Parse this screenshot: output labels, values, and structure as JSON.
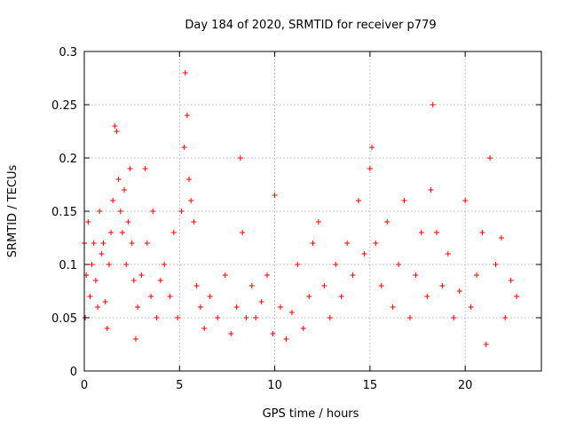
{
  "chart_data": {
    "type": "scatter",
    "title": "Day 184 of 2020, SRMTID for receiver p779",
    "xlabel": "GPS time / hours",
    "ylabel": "SRMTID / TECUs",
    "xlim": [
      0,
      24
    ],
    "ylim": [
      0,
      0.3
    ],
    "xticks": [
      0,
      5,
      10,
      15,
      20
    ],
    "xtick_labels": [
      "0",
      "5",
      "10",
      "15",
      "20"
    ],
    "yticks": [
      0,
      0.05,
      0.1,
      0.15,
      0.2,
      0.25,
      0.3
    ],
    "ytick_labels": [
      "0",
      "0.05",
      "0.1",
      "0.15",
      "0.2",
      "0.25",
      "0.3"
    ],
    "grid": true,
    "marker": "+",
    "color": "#ff0000",
    "series": [
      {
        "name": "SRMTID",
        "note": "approximate envelope samples read from the plot (hour, TECU)",
        "points": [
          [
            0.0,
            0.12
          ],
          [
            0.05,
            0.05
          ],
          [
            0.1,
            0.09
          ],
          [
            0.2,
            0.14
          ],
          [
            0.3,
            0.07
          ],
          [
            0.4,
            0.1
          ],
          [
            0.5,
            0.12
          ],
          [
            0.6,
            0.085
          ],
          [
            0.7,
            0.06
          ],
          [
            0.8,
            0.15
          ],
          [
            0.9,
            0.11
          ],
          [
            1.0,
            0.12
          ],
          [
            1.1,
            0.065
          ],
          [
            1.2,
            0.04
          ],
          [
            1.3,
            0.1
          ],
          [
            1.4,
            0.13
          ],
          [
            1.5,
            0.16
          ],
          [
            1.6,
            0.23
          ],
          [
            1.7,
            0.225
          ],
          [
            1.8,
            0.18
          ],
          [
            1.9,
            0.15
          ],
          [
            2.0,
            0.13
          ],
          [
            2.1,
            0.17
          ],
          [
            2.2,
            0.1
          ],
          [
            2.3,
            0.14
          ],
          [
            2.4,
            0.19
          ],
          [
            2.5,
            0.12
          ],
          [
            2.6,
            0.085
          ],
          [
            2.7,
            0.03
          ],
          [
            2.8,
            0.06
          ],
          [
            3.0,
            0.09
          ],
          [
            3.2,
            0.19
          ],
          [
            3.3,
            0.12
          ],
          [
            3.5,
            0.07
          ],
          [
            3.6,
            0.15
          ],
          [
            3.8,
            0.05
          ],
          [
            4.0,
            0.085
          ],
          [
            4.2,
            0.1
          ],
          [
            4.5,
            0.07
          ],
          [
            4.7,
            0.13
          ],
          [
            4.9,
            0.05
          ],
          [
            5.1,
            0.15
          ],
          [
            5.25,
            0.21
          ],
          [
            5.3,
            0.28
          ],
          [
            5.4,
            0.24
          ],
          [
            5.5,
            0.18
          ],
          [
            5.6,
            0.16
          ],
          [
            5.75,
            0.14
          ],
          [
            5.9,
            0.08
          ],
          [
            6.1,
            0.06
          ],
          [
            6.3,
            0.04
          ],
          [
            6.6,
            0.07
          ],
          [
            7.0,
            0.05
          ],
          [
            7.4,
            0.09
          ],
          [
            7.7,
            0.035
          ],
          [
            8.0,
            0.06
          ],
          [
            8.2,
            0.2
          ],
          [
            8.3,
            0.13
          ],
          [
            8.5,
            0.05
          ],
          [
            8.8,
            0.08
          ],
          [
            9.0,
            0.05
          ],
          [
            9.3,
            0.065
          ],
          [
            9.6,
            0.09
          ],
          [
            9.9,
            0.035
          ],
          [
            10.0,
            0.165
          ],
          [
            10.3,
            0.06
          ],
          [
            10.6,
            0.03
          ],
          [
            10.9,
            0.055
          ],
          [
            11.2,
            0.1
          ],
          [
            11.5,
            0.04
          ],
          [
            11.8,
            0.07
          ],
          [
            12.0,
            0.12
          ],
          [
            12.3,
            0.14
          ],
          [
            12.6,
            0.08
          ],
          [
            12.9,
            0.05
          ],
          [
            13.2,
            0.1
          ],
          [
            13.5,
            0.07
          ],
          [
            13.8,
            0.12
          ],
          [
            14.1,
            0.09
          ],
          [
            14.4,
            0.16
          ],
          [
            14.7,
            0.11
          ],
          [
            15.0,
            0.19
          ],
          [
            15.1,
            0.21
          ],
          [
            15.3,
            0.12
          ],
          [
            15.6,
            0.08
          ],
          [
            15.9,
            0.14
          ],
          [
            16.2,
            0.06
          ],
          [
            16.5,
            0.1
          ],
          [
            16.8,
            0.16
          ],
          [
            17.1,
            0.05
          ],
          [
            17.4,
            0.09
          ],
          [
            17.7,
            0.13
          ],
          [
            18.0,
            0.07
          ],
          [
            18.2,
            0.17
          ],
          [
            18.3,
            0.25
          ],
          [
            18.5,
            0.13
          ],
          [
            18.8,
            0.08
          ],
          [
            19.1,
            0.11
          ],
          [
            19.4,
            0.05
          ],
          [
            19.7,
            0.075
          ],
          [
            20.0,
            0.16
          ],
          [
            20.3,
            0.06
          ],
          [
            20.6,
            0.09
          ],
          [
            20.9,
            0.13
          ],
          [
            21.1,
            0.025
          ],
          [
            21.3,
            0.2
          ],
          [
            21.6,
            0.1
          ],
          [
            21.9,
            0.125
          ],
          [
            22.1,
            0.05
          ],
          [
            22.4,
            0.085
          ],
          [
            22.7,
            0.07
          ]
        ]
      }
    ]
  }
}
